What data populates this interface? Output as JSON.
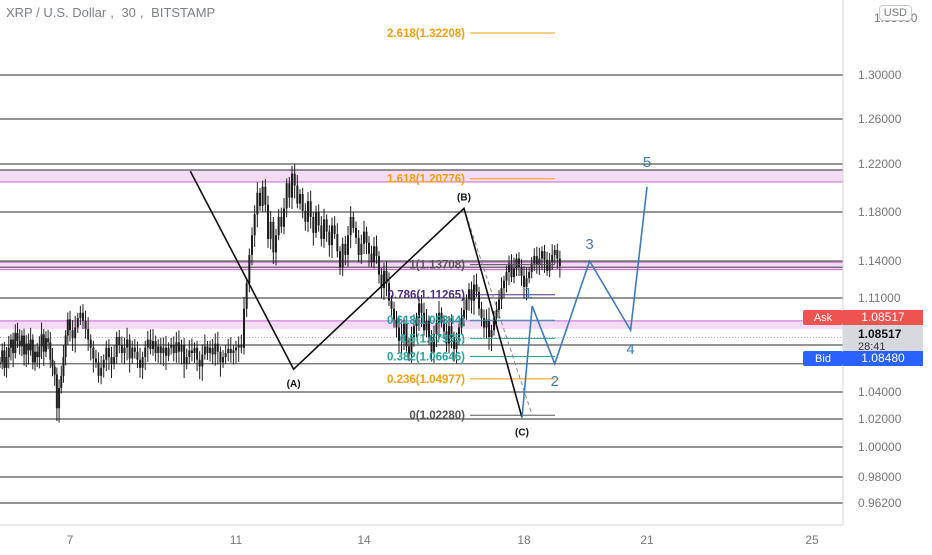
{
  "header": {
    "symbol": "XRP / U.S. Dollar",
    "interval": "30",
    "exchange": "BITSTAMP",
    "currency_button": "USD"
  },
  "colors": {
    "candle": "#1e1e1e",
    "grid": "#2a2a2a",
    "wave_blue": "#3d7bbf",
    "fib_orange": "#f59e0b",
    "fib_purple": "#4b2c85",
    "fib_teal": "#22a39b",
    "fib_gray": "#555555",
    "band_pink": "#e6a8e6",
    "ask_red": "#ef5350",
    "bid_blue": "#2962ff"
  },
  "chart_data": {
    "type": "candlestick",
    "y_axis": {
      "min": 0.945,
      "max": 1.34,
      "ticks": [
        "1.30000",
        "1.26000",
        "1.22000",
        "1.18000",
        "1.14000",
        "1.11000",
        "1.04000",
        "1.02000",
        "1.00000",
        "0.98000",
        "0.96200"
      ],
      "tick_values": [
        1.3,
        1.26,
        1.22,
        1.18,
        1.14,
        1.11,
        1.04,
        1.02,
        1.0,
        0.98,
        0.962
      ],
      "top_partial_label": "1.33000"
    },
    "x_axis": {
      "ticks": [
        "7",
        "11",
        "14",
        "18",
        "21",
        "25"
      ],
      "tick_days": [
        7,
        11,
        14,
        18,
        21,
        25
      ],
      "day_range": [
        5.0,
        26.8
      ]
    },
    "horizontal_levels": [
      1.3,
      1.26,
      1.22,
      1.215,
      1.18,
      1.14,
      1.135,
      1.11,
      1.04,
      1.02,
      1.0,
      0.98,
      0.962,
      1.075,
      1.061
    ],
    "candles": {
      "day_start": 5.0,
      "step_days": 0.0625,
      "close": [
        1.062,
        1.071,
        1.058,
        1.066,
        1.073,
        1.079,
        1.069,
        1.084,
        1.078,
        1.074,
        1.082,
        1.068,
        1.076,
        1.071,
        1.079,
        1.062,
        1.07,
        1.066,
        1.074,
        1.083,
        1.07,
        1.08,
        1.077,
        1.064,
        1.059,
        1.053,
        1.028,
        1.043,
        1.052,
        1.066,
        1.082,
        1.094,
        1.086,
        1.08,
        1.088,
        1.095,
        1.099,
        1.093,
        1.087,
        1.079,
        1.073,
        1.065,
        1.062,
        1.052,
        1.058,
        1.064,
        1.073,
        1.066,
        1.061,
        1.066,
        1.081,
        1.075,
        1.069,
        1.073,
        1.079,
        1.065,
        1.073,
        1.07,
        1.064,
        1.058,
        1.066,
        1.073,
        1.079,
        1.072,
        1.078,
        1.069,
        1.074,
        1.069,
        1.073,
        1.067,
        1.073,
        1.075,
        1.069,
        1.077,
        1.07,
        1.075,
        1.061,
        1.066,
        1.071,
        1.069,
        1.073,
        1.064,
        1.059,
        1.068,
        1.074,
        1.069,
        1.073,
        1.068,
        1.076,
        1.07,
        1.062,
        1.066,
        1.069,
        1.072,
        1.069,
        1.071,
        1.073,
        1.075,
        1.073,
        1.102,
        1.122,
        1.145,
        1.161,
        1.178,
        1.196,
        1.185,
        1.201,
        1.186,
        1.158,
        1.172,
        1.147,
        1.161,
        1.176,
        1.168,
        1.183,
        1.204,
        1.192,
        1.212,
        1.202,
        1.187,
        1.195,
        1.181,
        1.172,
        1.189,
        1.176,
        1.163,
        1.18,
        1.169,
        1.158,
        1.174,
        1.164,
        1.153,
        1.169,
        1.162,
        1.148,
        1.135,
        1.154,
        1.145,
        1.161,
        1.176,
        1.167,
        1.159,
        1.145,
        1.154,
        1.164,
        1.155,
        1.146,
        1.139,
        1.152,
        1.144,
        1.129,
        1.118,
        1.132,
        1.122,
        1.108,
        1.102,
        1.094,
        1.088,
        1.078,
        1.082,
        1.091,
        1.074,
        1.068,
        1.081,
        1.089,
        1.095,
        1.106,
        1.099,
        1.086,
        1.093,
        1.081,
        1.07,
        1.083,
        1.091,
        1.099,
        1.092,
        1.085,
        1.076,
        1.089,
        1.081,
        1.072,
        1.079,
        1.088,
        1.095,
        1.101,
        1.109,
        1.117,
        1.108,
        1.121,
        1.115,
        1.102,
        1.095,
        1.088,
        1.094,
        1.081,
        1.086,
        1.095,
        1.101,
        1.109,
        1.118,
        1.124,
        1.131,
        1.138,
        1.127,
        1.134,
        1.142,
        1.135,
        1.128,
        1.119,
        1.126,
        1.131,
        1.138,
        1.144,
        1.137,
        1.142,
        1.148,
        1.141,
        1.132,
        1.139,
        1.145,
        1.149,
        1.142,
        1.136,
        1.143,
        1.151,
        1.144,
        1.138,
        1.145,
        1.139,
        1.147,
        1.144,
        1.152,
        1.146,
        1.141,
        1.148,
        1.143,
        1.151,
        1.161,
        1.153,
        1.146,
        1.141,
        1.136,
        1.143,
        1.139,
        1.131,
        1.136,
        1.142,
        1.135,
        1.129,
        1.137,
        1.132,
        1.124,
        1.129,
        1.121,
        1.127,
        1.118,
        1.113,
        1.121,
        1.108,
        1.115,
        1.101,
        1.091,
        1.089,
        1.095,
        1.087,
        1.081,
        1.089,
        1.084,
        1.079
      ]
    },
    "fib_retracement": [
      {
        "label": "2.618(1.32208)",
        "value": 1.32208,
        "color": "#f59e0b"
      },
      {
        "label": "1.618(1.20776)",
        "value": 1.20776,
        "color": "#f59e0b"
      },
      {
        "label": "1(1.13708)",
        "value": 1.13708,
        "color": "#555555"
      },
      {
        "label": "0.786(1.11265)",
        "value": 1.11265,
        "color": "#4b2c85"
      },
      {
        "label": "0.618(1.09344)",
        "value": 1.09344,
        "color": "#22a39b"
      },
      {
        "label": "0.5(1.07995)",
        "value": 1.07995,
        "color": "#22a39b"
      },
      {
        "label": "0.382(1.06646)",
        "value": 1.06646,
        "color": "#22a39b"
      },
      {
        "label": "0.236(1.04977)",
        "value": 1.04977,
        "color": "#f59e0b"
      },
      {
        "label": "0(1.02280)",
        "value": 1.0228,
        "color": "#555555"
      }
    ],
    "corrective_waves": [
      {
        "label": "",
        "day": 9.9,
        "price": 1.214
      },
      {
        "label": "(A)",
        "day": 12.35,
        "price": 1.057
      },
      {
        "label": "(B)",
        "day": 16.5,
        "price": 1.183
      },
      {
        "label": "(C)",
        "day": 17.95,
        "price": 1.021
      }
    ],
    "impulse_projection": [
      {
        "label": "",
        "day": 17.95,
        "price": 1.021
      },
      {
        "label": "1",
        "day": 18.2,
        "price": 1.104
      },
      {
        "label": "2",
        "day": 18.75,
        "price": 1.061
      },
      {
        "label": "3",
        "day": 19.6,
        "price": 1.14
      },
      {
        "label": "4",
        "day": 20.6,
        "price": 1.086
      },
      {
        "label": "5",
        "day": 21.0,
        "price": 1.201
      }
    ],
    "price_tags": {
      "ask_label": "Ask",
      "ask_value": "1.08517",
      "current_value": "1.08517",
      "countdown": "28:41",
      "bid_label": "Bid",
      "bid_value": "1.08480",
      "ask_price": 1.08517,
      "bid_price": 1.0848
    }
  }
}
